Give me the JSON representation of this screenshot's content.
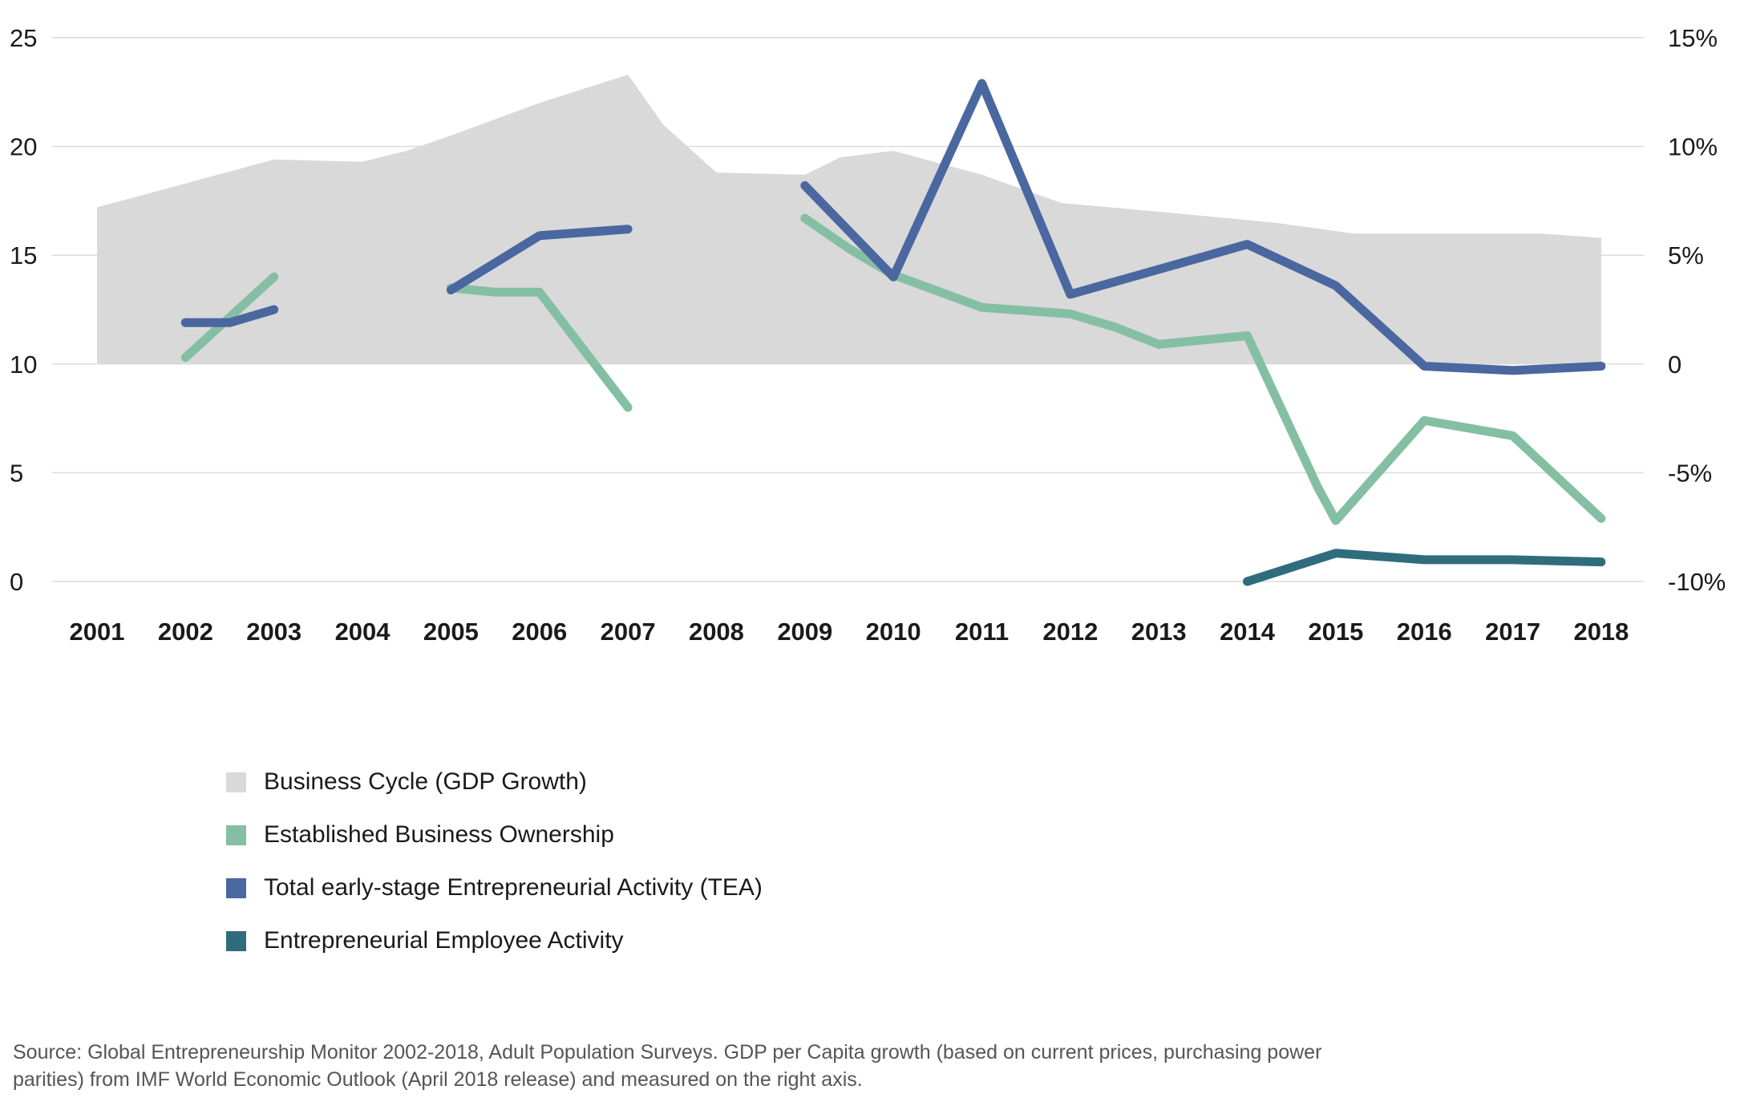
{
  "chart_data": {
    "type": "line",
    "title": "",
    "categories": [
      "2001",
      "2002",
      "2003",
      "2004",
      "2005",
      "2006",
      "2007",
      "2008",
      "2009",
      "2010",
      "2011",
      "2012",
      "2013",
      "2014",
      "2015",
      "2016",
      "2017",
      "2018"
    ],
    "left_axis": {
      "ylim": [
        0,
        25
      ],
      "ticks": [
        "0",
        "5",
        "10",
        "15",
        "20",
        "25"
      ]
    },
    "right_axis": {
      "ylim": [
        -10,
        15
      ],
      "ticks": [
        "-10%",
        "-5%",
        "0",
        "5%",
        "10%",
        "15%"
      ]
    },
    "grid": true,
    "legend_position": "bottom-left",
    "area_series": {
      "name": "Business Cycle (GDP Growth)",
      "axis": "right",
      "color": "#d9d9d9",
      "points": [
        {
          "x": 2001,
          "y": 7.2
        },
        {
          "x": 2002,
          "y": 8.3
        },
        {
          "x": 2003,
          "y": 9.4
        },
        {
          "x": 2004,
          "y": 9.3
        },
        {
          "x": 2004.5,
          "y": 9.8
        },
        {
          "x": 2005,
          "y": 10.5
        },
        {
          "x": 2006,
          "y": 12.0
        },
        {
          "x": 2007,
          "y": 13.3
        },
        {
          "x": 2007.4,
          "y": 11.0
        },
        {
          "x": 2008,
          "y": 8.8
        },
        {
          "x": 2009,
          "y": 8.7
        },
        {
          "x": 2009.4,
          "y": 9.5
        },
        {
          "x": 2010,
          "y": 9.8
        },
        {
          "x": 2011,
          "y": 8.7
        },
        {
          "x": 2011.9,
          "y": 7.4
        },
        {
          "x": 2013,
          "y": 7.0
        },
        {
          "x": 2014.3,
          "y": 6.5
        },
        {
          "x": 2015.2,
          "y": 6.0
        },
        {
          "x": 2017,
          "y": 6.0
        },
        {
          "x": 2017.3,
          "y": 6.0
        },
        {
          "x": 2018,
          "y": 5.8
        }
      ]
    },
    "series": [
      {
        "name": "Established Business Ownership",
        "color": "#84bfa4",
        "segments": [
          [
            {
              "x": 2002,
              "y": 10.3
            },
            {
              "x": 2003,
              "y": 14.0
            }
          ],
          [
            {
              "x": 2005,
              "y": 13.5
            },
            {
              "x": 2005.5,
              "y": 13.3
            },
            {
              "x": 2006,
              "y": 13.3
            },
            {
              "x": 2007,
              "y": 8.0
            }
          ],
          [
            {
              "x": 2009,
              "y": 16.7
            },
            {
              "x": 2009.5,
              "y": 15.3
            },
            {
              "x": 2010,
              "y": 14.1
            },
            {
              "x": 2011,
              "y": 12.6
            },
            {
              "x": 2012,
              "y": 12.3
            },
            {
              "x": 2012.5,
              "y": 11.7
            },
            {
              "x": 2013,
              "y": 10.9
            },
            {
              "x": 2014,
              "y": 11.3
            },
            {
              "x": 2014.8,
              "y": 4.3
            },
            {
              "x": 2015,
              "y": 2.8
            },
            {
              "x": 2016,
              "y": 7.4
            },
            {
              "x": 2017,
              "y": 6.7
            },
            {
              "x": 2018,
              "y": 2.9
            }
          ]
        ]
      },
      {
        "name": "Total early-stage Entrepreneurial Activity (TEA)",
        "color": "#4a67a0",
        "segments": [
          [
            {
              "x": 2002,
              "y": 11.9
            },
            {
              "x": 2002.5,
              "y": 11.9
            },
            {
              "x": 2003,
              "y": 12.5
            }
          ],
          [
            {
              "x": 2005,
              "y": 13.4
            },
            {
              "x": 2006,
              "y": 15.9
            },
            {
              "x": 2007,
              "y": 16.2
            }
          ],
          [
            {
              "x": 2009,
              "y": 18.2
            },
            {
              "x": 2010,
              "y": 14.0
            },
            {
              "x": 2011,
              "y": 22.9
            },
            {
              "x": 2012,
              "y": 13.2
            },
            {
              "x": 2014,
              "y": 15.5
            },
            {
              "x": 2015,
              "y": 13.6
            },
            {
              "x": 2016,
              "y": 9.9
            },
            {
              "x": 2017,
              "y": 9.7
            },
            {
              "x": 2018,
              "y": 9.9
            }
          ]
        ]
      },
      {
        "name": "Entrepreneurial Employee Activity",
        "color": "#2f6d7d",
        "segments": [
          [
            {
              "x": 2014,
              "y": 0.0
            },
            {
              "x": 2015,
              "y": 1.3
            },
            {
              "x": 2016,
              "y": 1.0
            },
            {
              "x": 2017,
              "y": 1.0
            },
            {
              "x": 2018,
              "y": 0.9
            }
          ]
        ]
      }
    ],
    "legend": [
      {
        "label": "Business Cycle (GDP Growth)",
        "color": "#d9d9d9"
      },
      {
        "label": "Established Business Ownership",
        "color": "#84bfa4"
      },
      {
        "label": "Total early-stage Entrepreneurial Activity (TEA)",
        "color": "#4a67a0"
      },
      {
        "label": "Entrepreneurial Employee Activity",
        "color": "#2f6d7d"
      }
    ],
    "source_note": "Source: Global Entrepreneurship Monitor 2002-2018, Adult Population Surveys. GDP per Capita growth (based on current prices, purchasing power parities) from IMF World Economic Outlook (April 2018 release) and measured on the right axis."
  }
}
